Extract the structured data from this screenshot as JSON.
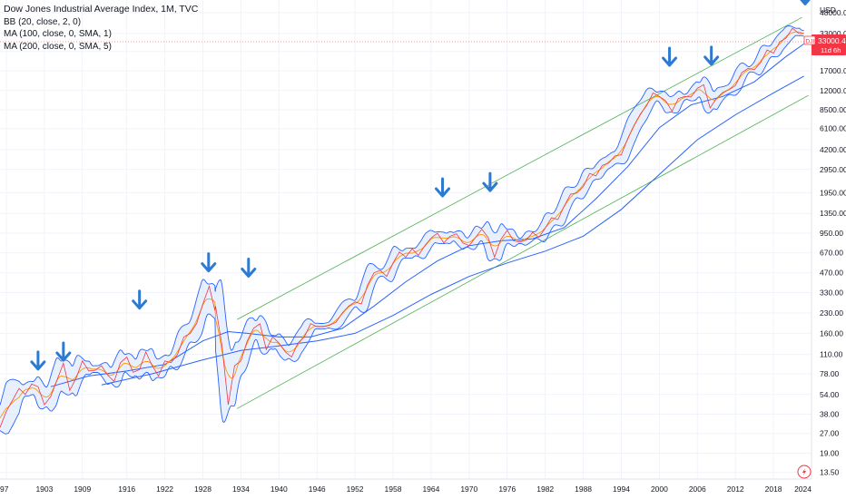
{
  "legend": {
    "title": "Dow Jones Industrial Average Index, 1M, TVC",
    "indicators": [
      "BB (20, close, 2, 0)",
      "MA (100, close, 0, SMA, 1)",
      "MA (200, close, 0, SMA, 5)"
    ]
  },
  "price_badge": {
    "symbol": "DJI",
    "value": "33000.42",
    "countdown": "11d 6h"
  },
  "colors": {
    "price": "#f23645",
    "bb_band": "#2962ff",
    "bb_fill": "#d6e4fb",
    "basis": "#ff9800",
    "channel": "#4caf50",
    "arrow": "#2e7ad1"
  },
  "chart_data": {
    "type": "line",
    "title": "Dow Jones Industrial Average Index, 1M, TVC",
    "y_scale": "log",
    "y_unit": "USD",
    "x_ticks": [
      "97",
      "1903",
      "1909",
      "1916",
      "1922",
      "1928",
      "1934",
      "1940",
      "1946",
      "1952",
      "1958",
      "1964",
      "1970",
      "1976",
      "1982",
      "1988",
      "1994",
      "2000",
      "2006",
      "2012",
      "2018",
      "2024"
    ],
    "y_ticks": [
      "48000.00",
      "33000.00",
      "24000.00",
      "17000.00",
      "12000.00",
      "8500.00",
      "6100.00",
      "4200.00",
      "2950.00",
      "1950.00",
      "1350.00",
      "950.00",
      "670.00",
      "470.00",
      "330.00",
      "230.00",
      "160.00",
      "110.00",
      "78.00",
      "54.00",
      "38.00",
      "27.00",
      "19.00",
      "13.50"
    ],
    "xlim": [
      1896,
      2024
    ],
    "ylim": [
      12,
      60000
    ],
    "series": [
      {
        "type": "line",
        "points": [
          [
            1896,
            30
          ],
          [
            1897,
            40
          ],
          [
            1899,
            60
          ],
          [
            1900,
            54
          ],
          [
            1901,
            65
          ],
          [
            1902,
            62
          ],
          [
            1903,
            45
          ],
          [
            1904,
            52
          ],
          [
            1905,
            70
          ],
          [
            1906,
            94
          ],
          [
            1907,
            58
          ],
          [
            1908,
            72
          ],
          [
            1909,
            98
          ],
          [
            1910,
            82
          ],
          [
            1911,
            83
          ],
          [
            1912,
            90
          ],
          [
            1913,
            76
          ],
          [
            1914,
            68
          ],
          [
            1915,
            95
          ],
          [
            1916,
            105
          ],
          [
            1917,
            80
          ],
          [
            1918,
            84
          ],
          [
            1919,
            115
          ],
          [
            1920,
            90
          ],
          [
            1921,
            75
          ],
          [
            1922,
            98
          ],
          [
            1923,
            95
          ],
          [
            1924,
            110
          ],
          [
            1925,
            150
          ],
          [
            1926,
            160
          ],
          [
            1927,
            190
          ],
          [
            1928,
            270
          ],
          [
            1929,
            370
          ],
          [
            1929.9,
            240
          ],
          [
            1930,
            260
          ],
          [
            1931,
            130
          ],
          [
            1932,
            45
          ],
          [
            1933,
            90
          ],
          [
            1934,
            98
          ],
          [
            1935,
            140
          ],
          [
            1936,
            175
          ],
          [
            1937,
            190
          ],
          [
            1938,
            120
          ],
          [
            1939,
            150
          ],
          [
            1940,
            135
          ],
          [
            1941,
            115
          ],
          [
            1942,
            105
          ],
          [
            1943,
            135
          ],
          [
            1944,
            150
          ],
          [
            1945,
            190
          ],
          [
            1946,
            180
          ],
          [
            1947,
            180
          ],
          [
            1948,
            185
          ],
          [
            1949,
            195
          ],
          [
            1950,
            230
          ],
          [
            1951,
            260
          ],
          [
            1952,
            280
          ],
          [
            1953,
            270
          ],
          [
            1954,
            380
          ],
          [
            1955,
            470
          ],
          [
            1956,
            490
          ],
          [
            1957,
            440
          ],
          [
            1958,
            560
          ],
          [
            1959,
            680
          ],
          [
            1960,
            620
          ],
          [
            1961,
            720
          ],
          [
            1962,
            640
          ],
          [
            1963,
            760
          ],
          [
            1964,
            870
          ],
          [
            1965,
            950
          ],
          [
            1966,
            800
          ],
          [
            1967,
            900
          ],
          [
            1968,
            940
          ],
          [
            1969,
            800
          ],
          [
            1970,
            760
          ],
          [
            1971,
            880
          ],
          [
            1972,
            1020
          ],
          [
            1973,
            880
          ],
          [
            1974,
            620
          ],
          [
            1975,
            850
          ],
          [
            1976,
            1000
          ],
          [
            1977,
            830
          ],
          [
            1978,
            810
          ],
          [
            1979,
            840
          ],
          [
            1980,
            960
          ],
          [
            1981,
            880
          ],
          [
            1982,
            1040
          ],
          [
            1983,
            1250
          ],
          [
            1984,
            1210
          ],
          [
            1985,
            1540
          ],
          [
            1986,
            1900
          ],
          [
            1987,
            1940
          ],
          [
            1988,
            2170
          ],
          [
            1989,
            2750
          ],
          [
            1990,
            2630
          ],
          [
            1991,
            3170
          ],
          [
            1992,
            3300
          ],
          [
            1993,
            3750
          ],
          [
            1994,
            3830
          ],
          [
            1995,
            5100
          ],
          [
            1996,
            6450
          ],
          [
            1997,
            7900
          ],
          [
            1998,
            9180
          ],
          [
            1999,
            11500
          ],
          [
            2000,
            10800
          ],
          [
            2001,
            10000
          ],
          [
            2002,
            8300
          ],
          [
            2003,
            10400
          ],
          [
            2004,
            10800
          ],
          [
            2005,
            10700
          ],
          [
            2006,
            12500
          ],
          [
            2007,
            13300
          ],
          [
            2008,
            8800
          ],
          [
            2009,
            10400
          ],
          [
            2010,
            11600
          ],
          [
            2011,
            12200
          ],
          [
            2012,
            13100
          ],
          [
            2013,
            16500
          ],
          [
            2014,
            17800
          ],
          [
            2015,
            17400
          ],
          [
            2016,
            19800
          ],
          [
            2017,
            24700
          ],
          [
            2018,
            23300
          ],
          [
            2019,
            28500
          ],
          [
            2020,
            30600
          ],
          [
            2021,
            36300
          ],
          [
            2022,
            33100
          ],
          [
            2022.8,
            33000
          ]
        ]
      },
      {
        "name": "MA (100, close, 0, SMA, 1)",
        "points": [
          [
            1904,
            62
          ],
          [
            1910,
            75
          ],
          [
            1916,
            82
          ],
          [
            1922,
            92
          ],
          [
            1928,
            140
          ],
          [
            1932,
            165
          ],
          [
            1935,
            160
          ],
          [
            1940,
            150
          ],
          [
            1945,
            150
          ],
          [
            1950,
            175
          ],
          [
            1955,
            260
          ],
          [
            1960,
            400
          ],
          [
            1965,
            580
          ],
          [
            1970,
            760
          ],
          [
            1975,
            830
          ],
          [
            1980,
            860
          ],
          [
            1985,
            1050
          ],
          [
            1990,
            1750
          ],
          [
            1995,
            3100
          ],
          [
            2000,
            6200
          ],
          [
            2005,
            9300
          ],
          [
            2010,
            10800
          ],
          [
            2015,
            14000
          ],
          [
            2020,
            22000
          ],
          [
            2022.8,
            27500
          ]
        ]
      },
      {
        "name": "MA (200, close, 0, SMA, 5)",
        "points": [
          [
            1912,
            64
          ],
          [
            1920,
            78
          ],
          [
            1928,
            100
          ],
          [
            1934,
            118
          ],
          [
            1940,
            128
          ],
          [
            1946,
            140
          ],
          [
            1952,
            160
          ],
          [
            1958,
            220
          ],
          [
            1964,
            320
          ],
          [
            1970,
            440
          ],
          [
            1976,
            560
          ],
          [
            1982,
            690
          ],
          [
            1988,
            900
          ],
          [
            1994,
            1450
          ],
          [
            2000,
            2700
          ],
          [
            2006,
            5000
          ],
          [
            2012,
            7800
          ],
          [
            2018,
            11500
          ],
          [
            2022.8,
            15500
          ]
        ]
      }
    ],
    "channel_lines": [
      {
        "points": [
          [
            1933.4,
            205
          ],
          [
            2022.5,
            44000
          ]
        ]
      },
      {
        "points": [
          [
            1933.4,
            42
          ],
          [
            2023.5,
            11000
          ]
        ]
      }
    ],
    "arrow_marks": [
      [
        1902,
        115
      ],
      [
        1906,
        135
      ],
      [
        1918,
        340
      ],
      [
        1928.9,
        660
      ],
      [
        1935.2,
        600
      ],
      [
        1965.8,
        2500
      ],
      [
        1973.3,
        2750
      ],
      [
        2001.6,
        25500
      ],
      [
        2008.2,
        26000
      ],
      [
        2023,
        76000
      ]
    ]
  }
}
